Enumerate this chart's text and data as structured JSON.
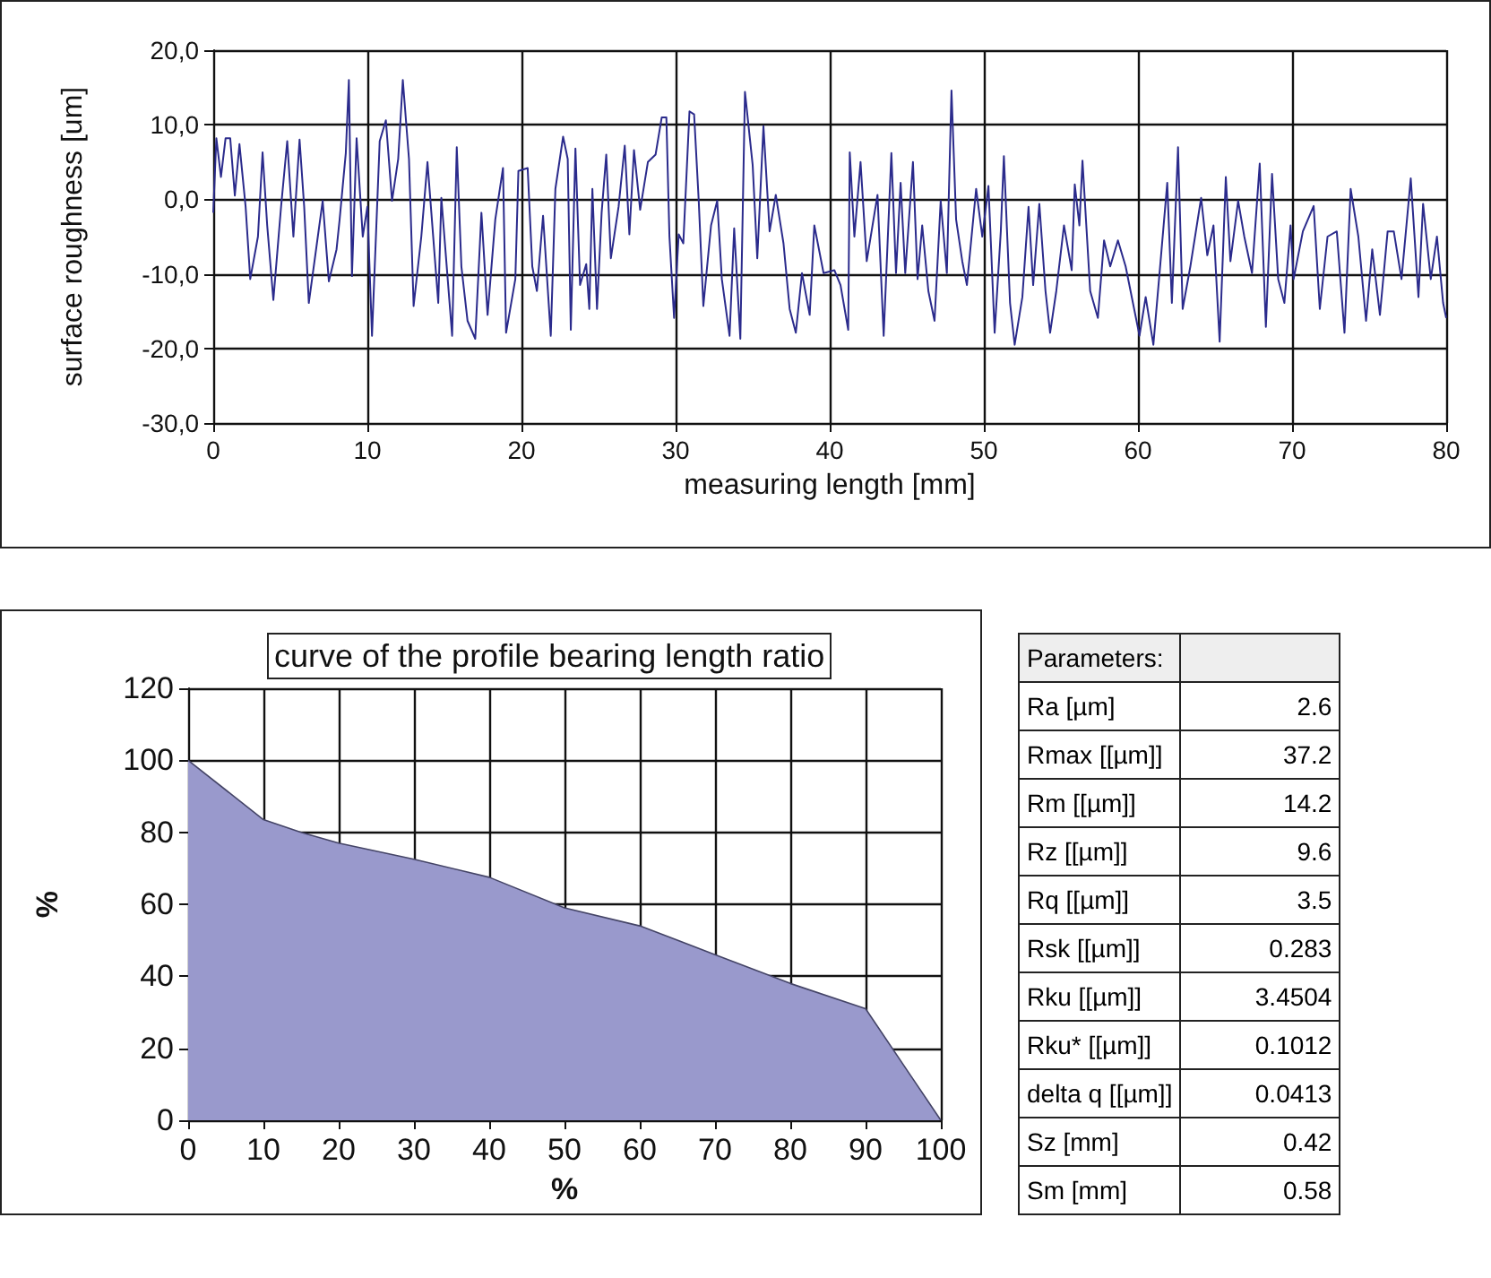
{
  "chart_data": [
    {
      "type": "line",
      "xlabel": "measuring length [mm]",
      "ylabel": "surface roughness [um]",
      "color": "#2b2b8c",
      "grid": true,
      "xlim": [
        0,
        80
      ],
      "xticks": [
        0,
        10,
        20,
        30,
        40,
        50,
        60,
        70,
        80
      ],
      "ylim": [
        -30,
        20
      ],
      "yticks": [
        {
          "value": -30,
          "label": "-30,0"
        },
        {
          "value": -20,
          "label": "-20,0"
        },
        {
          "value": -10,
          "label": "-10,0"
        },
        {
          "value": 0,
          "label": "0,0"
        },
        {
          "value": 10,
          "label": "10,0"
        },
        {
          "value": 20,
          "label": "20,0"
        }
      ],
      "x": [
        0,
        0.2,
        0.5,
        0.8,
        1.1,
        1.4,
        1.7,
        2.1,
        2.4,
        2.9,
        3.2,
        3.5,
        3.9,
        4.4,
        4.8,
        5.2,
        5.6,
        5.9,
        6.2,
        7.1,
        7.5,
        8.0,
        8.2,
        8.6,
        8.8,
        9.0,
        9.3,
        9.7,
        10,
        10.3,
        10.8,
        11.2,
        11.6,
        12.0,
        12.3,
        12.7,
        13.0,
        13.5,
        13.9,
        14.6,
        14.8,
        15.5,
        15.8,
        16.1,
        16.5,
        17.0,
        17.4,
        17.8,
        18.3,
        18.8,
        19.0,
        19.6,
        19.8,
        20.4,
        20.7,
        21.0,
        21.4,
        21.9,
        22.2,
        22.7,
        23.0,
        23.2,
        23.5,
        23.8,
        24.2,
        24.4,
        24.6,
        24.9,
        25.2,
        25.5,
        25.8,
        26.3,
        26.7,
        27.0,
        27.3,
        27.7,
        28.2,
        28.7,
        29.1,
        29.4,
        29.6,
        29.9,
        30.2,
        30.5,
        30.9,
        31.2,
        31.5,
        31.8,
        32.3,
        32.7,
        33.0,
        33.5,
        33.8,
        34.2,
        34.5,
        35.0,
        35.3,
        35.7,
        36.1,
        36.5,
        37.0,
        37.4,
        37.8,
        38.2,
        38.7,
        39.0,
        39.6,
        40.3,
        40.7,
        41.2,
        41.3,
        41.6,
        42.0,
        42.4,
        43.1,
        43.5,
        44.0,
        44.3,
        44.6,
        44.9,
        45.4,
        45.7,
        46.0,
        46.4,
        46.8,
        47.2,
        47.6,
        47.9,
        48.2,
        48.6,
        48.9,
        49.5,
        49.9,
        50.3,
        50.7,
        51.1,
        51.3,
        51.7,
        52.0,
        52.5,
        52.9,
        53.2,
        53.6,
        54.0,
        54.3,
        54.7,
        55.2,
        55.7,
        55.9,
        56.2,
        56.4,
        56.9,
        57.4,
        57.8,
        58.2,
        58.7,
        59.2,
        60.1,
        60.5,
        61.0,
        61.5,
        61.9,
        62.2,
        62.6,
        62.9,
        63.4,
        64.1,
        64.5,
        64.9,
        65.3,
        65.7,
        66.0,
        66.5,
        66.9,
        67.4,
        67.9,
        68.3,
        68.7,
        69.1,
        69.5,
        69.9,
        70.1,
        70.7,
        71.4,
        71.8,
        72.3,
        72.9,
        73.4,
        73.8,
        74.3,
        74.8,
        75.2,
        75.7,
        76.2,
        76.6,
        77.1,
        77.7,
        78.2,
        78.5,
        79.0,
        79.4,
        79.8,
        80
      ],
      "values": [
        -1.8,
        8.2,
        3,
        8.2,
        8.2,
        0.5,
        7.4,
        -1,
        -10.7,
        -5,
        6.3,
        -3.5,
        -13.5,
        -1,
        7.8,
        -5,
        8,
        -1,
        -13.9,
        -0.2,
        -11,
        -6.7,
        -2.7,
        6.2,
        16,
        -10.3,
        8.2,
        -5,
        -1,
        -18.3,
        7.8,
        10.6,
        -0.2,
        5.4,
        16,
        5.4,
        -14.3,
        -5,
        5,
        -13.9,
        0.2,
        -18.3,
        7,
        -9,
        -16.3,
        -18.7,
        -1.8,
        -15.5,
        -2.7,
        4.2,
        -17.9,
        -10.7,
        3.8,
        4.2,
        -9,
        -12.3,
        -2.2,
        -18.3,
        1.4,
        8.4,
        5.4,
        -17.5,
        6.8,
        -11.5,
        -8.7,
        -14.7,
        1.4,
        -14.7,
        -1.8,
        6,
        -7.9,
        -1,
        7.2,
        -4.7,
        6.6,
        -1.4,
        5,
        6,
        11,
        11,
        -5,
        -15.9,
        -4.7,
        -5.9,
        11.8,
        11.4,
        -0.2,
        -14.3,
        -3.5,
        -0.2,
        -10.7,
        -18.3,
        -3.9,
        -18.7,
        14.4,
        4.6,
        -7.9,
        9.8,
        -4.3,
        0.6,
        -5.9,
        -14.7,
        -17.9,
        -9.9,
        -15.5,
        -3.5,
        -9.9,
        -9.5,
        -11.5,
        -17.5,
        6.3,
        -5,
        5,
        -8.3,
        0.6,
        -18.3,
        6.2,
        -9.9,
        2.2,
        -9.9,
        5,
        -10.7,
        -3.5,
        -12.3,
        -16.3,
        -0.2,
        -9.9,
        14.6,
        -2.7,
        -8.3,
        -11.5,
        1.4,
        -5,
        1.8,
        -17.9,
        -4.3,
        5.8,
        -13.9,
        -19.5,
        -13.1,
        -1,
        -11.5,
        -0.6,
        -12.3,
        -17.9,
        -12.3,
        -3.5,
        -9.5,
        2,
        -3.5,
        5.2,
        -12.3,
        -15.9,
        -5.5,
        -9,
        -5.5,
        -9,
        -18.3,
        -13.1,
        -19.5,
        -7.5,
        2.2,
        -13.9,
        7,
        -14.7,
        -9,
        0.2,
        -7.5,
        -3.5,
        -19.1,
        3,
        -8.3,
        -0.2,
        -5,
        -9.9,
        4.8,
        -17.1,
        3.4,
        -10.7,
        -13.9,
        -3.5,
        -10.7,
        -4.3,
        -0.9,
        -14.7,
        -5,
        -4.3,
        -17.9,
        1.4,
        -5,
        -16.3,
        -6.7,
        -15.5,
        -4.3,
        -4.3,
        -10.7,
        2.8,
        -13.1,
        -0.6,
        -10.7,
        -5,
        -13.9,
        -15.9
      ]
    },
    {
      "type": "area",
      "title": "curve of the profile bearing length ratio",
      "xlabel": "%",
      "ylabel": "%",
      "color": "#9999cc",
      "grid": true,
      "xlim": [
        0,
        100
      ],
      "xticks": [
        0,
        10,
        20,
        30,
        40,
        50,
        60,
        70,
        80,
        90,
        100
      ],
      "ylim": [
        0,
        120
      ],
      "yticks": [
        0,
        20,
        40,
        60,
        80,
        100,
        120
      ],
      "x": [
        0,
        10,
        15,
        20,
        30,
        40,
        50,
        60,
        70,
        80,
        90,
        100
      ],
      "values": [
        100,
        83.5,
        80,
        77,
        72.5,
        67.5,
        59,
        54,
        46,
        38,
        31,
        0
      ]
    },
    {
      "type": "other",
      "title": "Parameters:",
      "categories": [
        "Ra [µm]",
        "Rmax [[µm]]",
        "Rm [[µm]]",
        "Rz [[µm]]",
        "Rq [[µm]]",
        "Rsk [[µm]]",
        "Rku [[µm]]",
        "Rku* [[µm]]",
        "delta q [[µm]]",
        "Sz [mm]",
        "Sm [mm]"
      ],
      "value_labels": [
        "2.6",
        "37.2",
        "14.2",
        "9.6",
        "3.5",
        "0.283",
        "3.4504",
        "0.1012",
        "0.0413",
        "0.42",
        "0.58"
      ]
    }
  ]
}
